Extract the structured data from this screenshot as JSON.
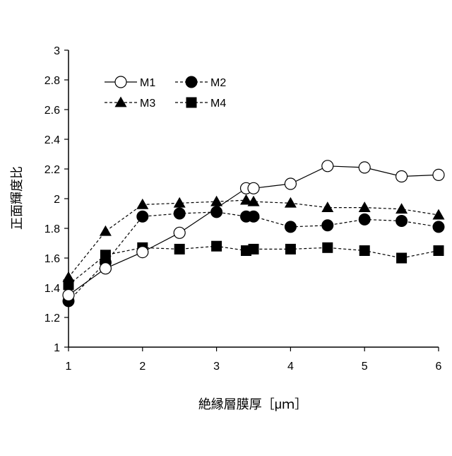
{
  "chart_data": {
    "type": "line",
    "title": "",
    "xlabel": "絶縁層膜厚［μｍ］",
    "ylabel": "正面輝度比",
    "xlim": [
      1,
      6
    ],
    "ylim": [
      1,
      3
    ],
    "xticks": [
      1,
      2,
      3,
      4,
      5,
      6
    ],
    "yticks": [
      1,
      1.2,
      1.4,
      1.6,
      1.8,
      2,
      2.2,
      2.4,
      2.6,
      2.8,
      3
    ],
    "grid": false,
    "legend": "top-left",
    "series": [
      {
        "name": "M1",
        "marker": "circle-open",
        "line": "solid",
        "x": [
          1,
          1.5,
          2,
          2.5,
          3.4,
          3.5,
          4,
          4.5,
          5,
          5.5,
          6
        ],
        "y": [
          1.35,
          1.53,
          1.64,
          1.77,
          2.07,
          2.07,
          2.1,
          2.22,
          2.21,
          2.15,
          2.16
        ]
      },
      {
        "name": "M2",
        "marker": "circle-filled",
        "line": "dashed",
        "x": [
          1,
          1.5,
          2,
          2.5,
          3,
          3.4,
          3.5,
          4,
          4.5,
          5,
          5.5,
          6
        ],
        "y": [
          1.31,
          1.57,
          1.88,
          1.9,
          1.91,
          1.88,
          1.88,
          1.81,
          1.82,
          1.86,
          1.85,
          1.81
        ]
      },
      {
        "name": "M3",
        "marker": "triangle-filled",
        "line": "dashed",
        "x": [
          1,
          1.5,
          2,
          2.5,
          3,
          3.4,
          3.5,
          4,
          4.5,
          5,
          5.5,
          6
        ],
        "y": [
          1.47,
          1.78,
          1.96,
          1.97,
          1.98,
          1.99,
          1.98,
          1.97,
          1.94,
          1.94,
          1.93,
          1.89
        ]
      },
      {
        "name": "M4",
        "marker": "square-filled",
        "line": "dashed",
        "x": [
          1,
          1.5,
          2,
          2.5,
          3,
          3.4,
          3.5,
          4,
          4.5,
          5,
          5.5,
          6
        ],
        "y": [
          1.42,
          1.62,
          1.67,
          1.66,
          1.68,
          1.65,
          1.66,
          1.66,
          1.67,
          1.65,
          1.6,
          1.65
        ]
      }
    ]
  }
}
